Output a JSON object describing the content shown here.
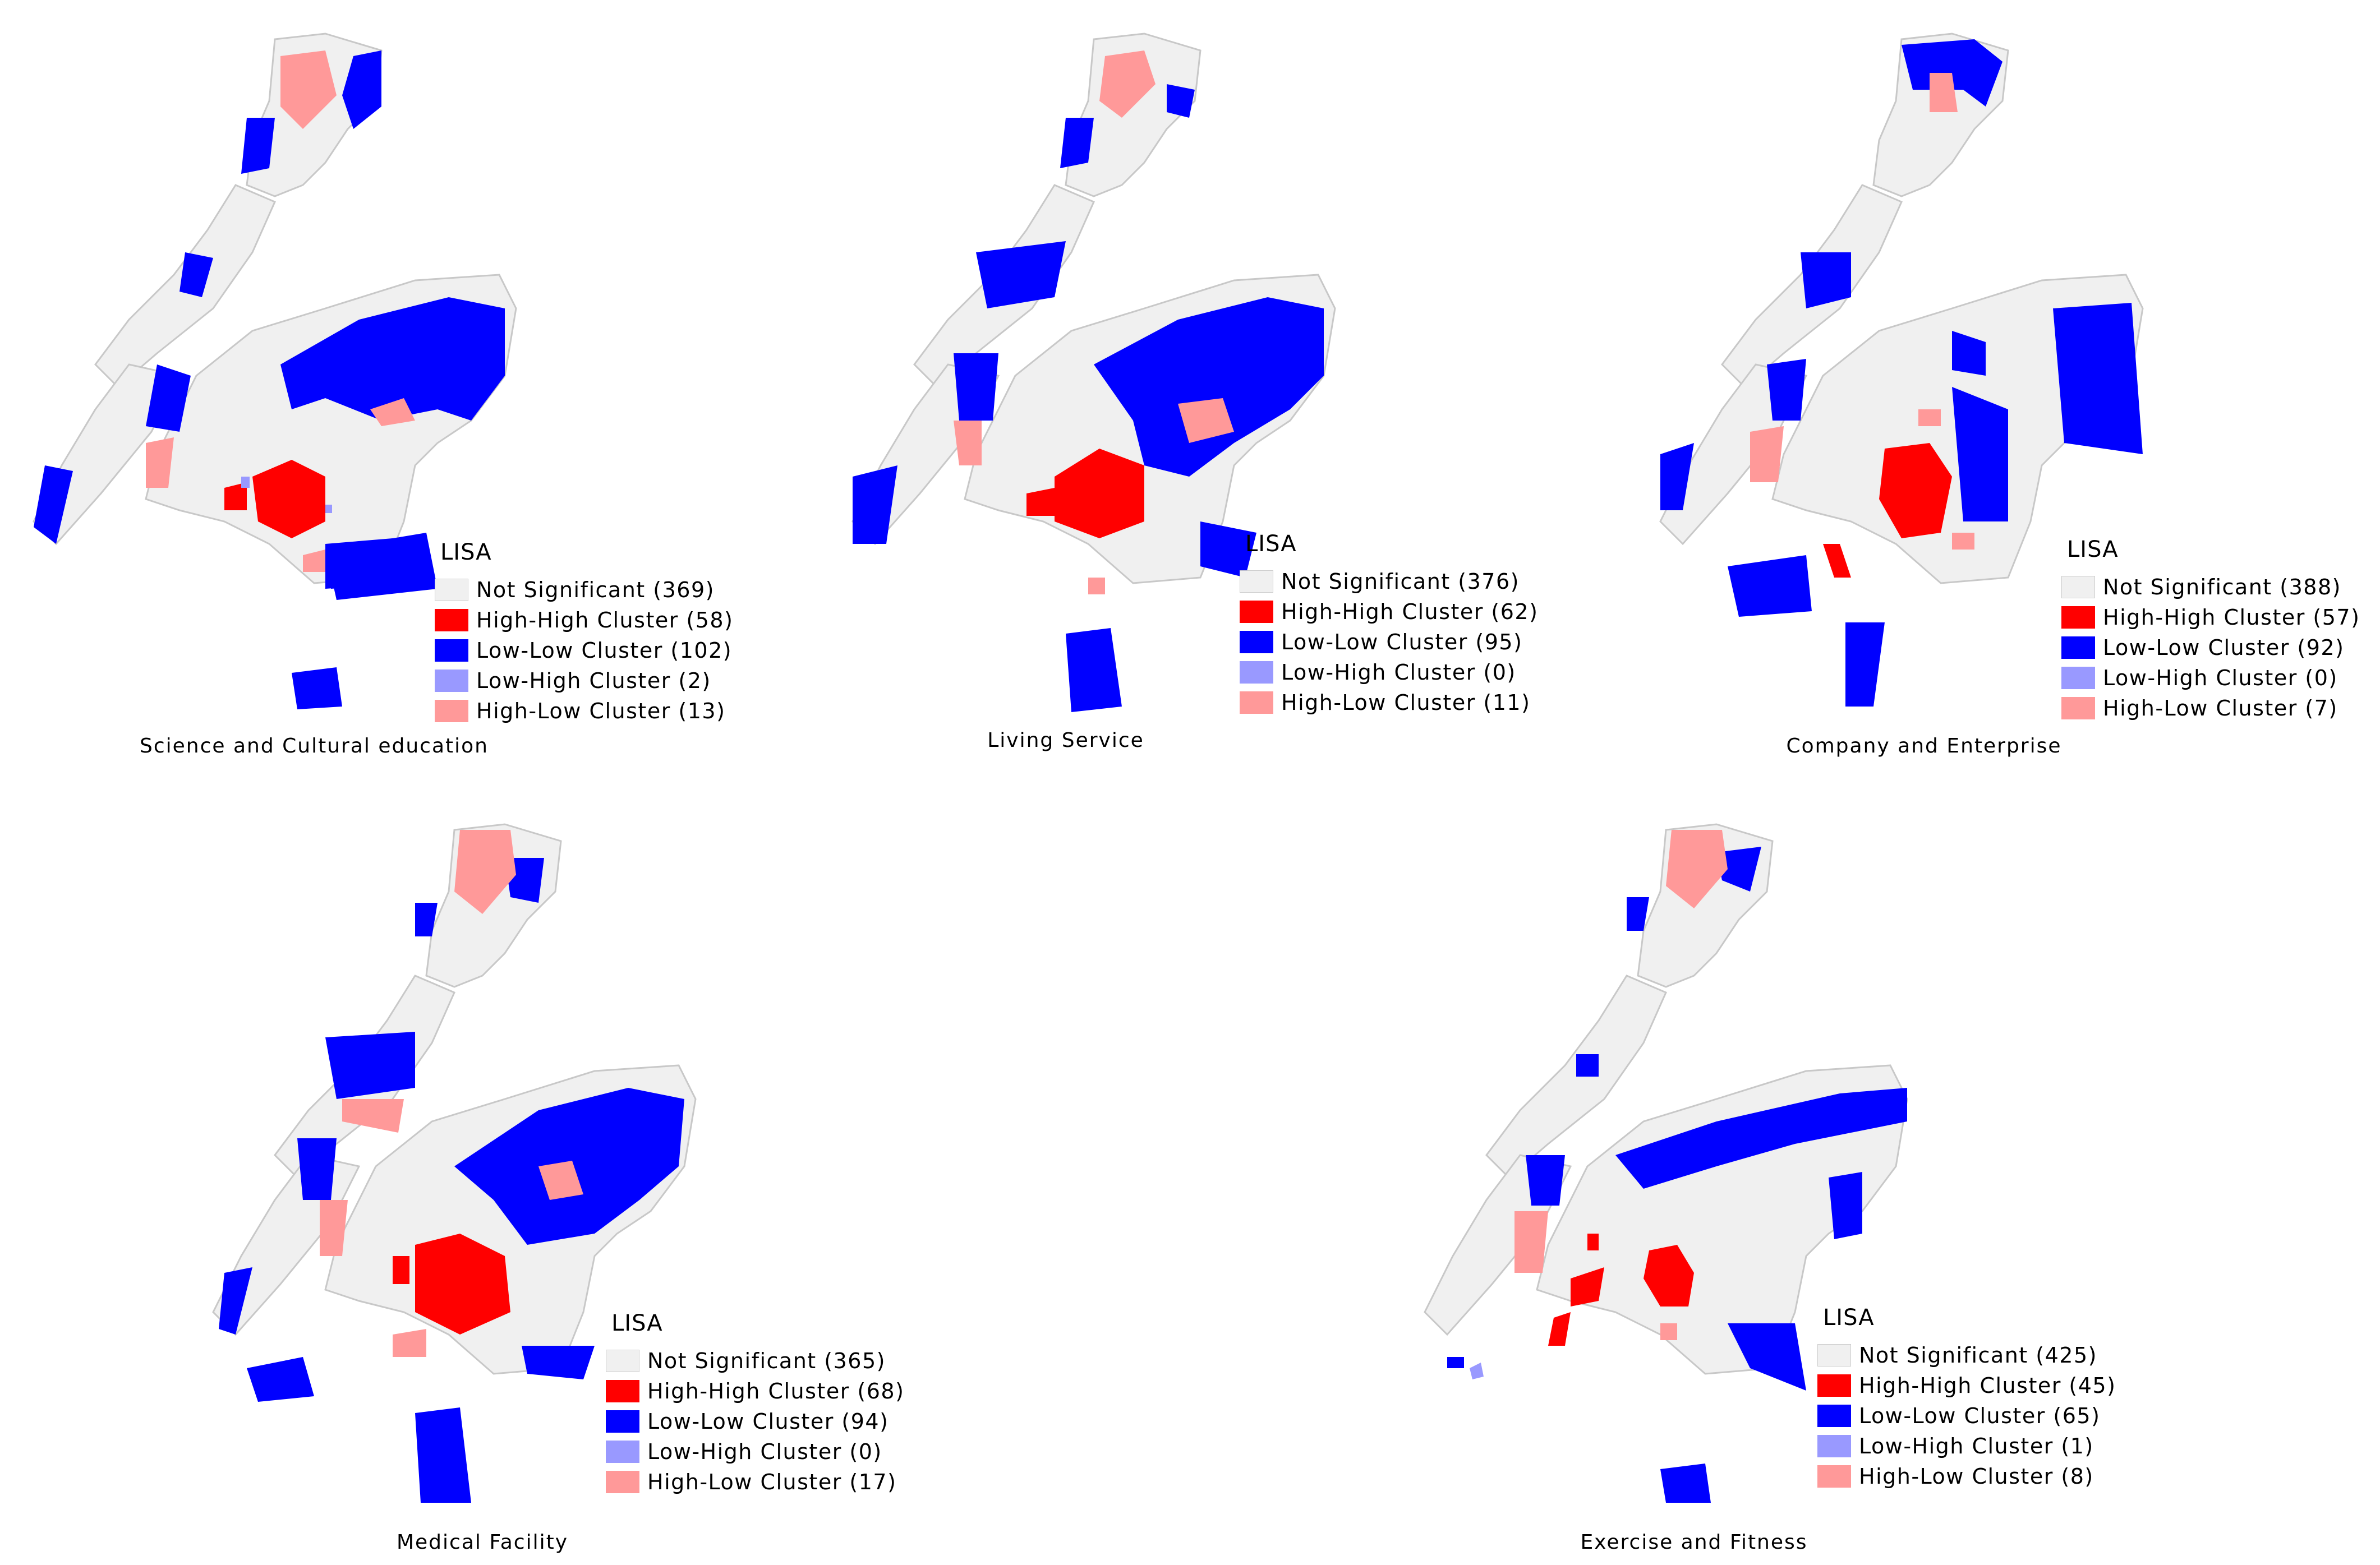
{
  "colors": {
    "not_significant": "#f0f0f0",
    "high_high": "#ff0000",
    "low_low": "#0000ff",
    "low_high": "#9999ff",
    "high_low": "#ff9999",
    "boundary": "#c8c8c8"
  },
  "panels": [
    {
      "caption": "Science and Cultural education",
      "legend_title": "LISA",
      "entries": [
        {
          "label": "Not Significant (369)",
          "color": "#f0f0f0"
        },
        {
          "label": "High-High Cluster (58)",
          "color": "#ff0000"
        },
        {
          "label": "Low-Low Cluster (102)",
          "color": "#0000ff"
        },
        {
          "label": "Low-High Cluster (2)",
          "color": "#9999ff"
        },
        {
          "label": "High-Low Cluster (13)",
          "color": "#ff9999"
        }
      ]
    },
    {
      "caption": "Living Service",
      "legend_title": "LISA",
      "entries": [
        {
          "label": "Not Significant (376)",
          "color": "#f0f0f0"
        },
        {
          "label": "High-High Cluster (62)",
          "color": "#ff0000"
        },
        {
          "label": "Low-Low Cluster (95)",
          "color": "#0000ff"
        },
        {
          "label": "Low-High Cluster (0)",
          "color": "#9999ff"
        },
        {
          "label": "High-Low Cluster (11)",
          "color": "#ff9999"
        }
      ]
    },
    {
      "caption": "Company and Enterprise",
      "legend_title": "LISA",
      "entries": [
        {
          "label": "Not Significant (388)",
          "color": "#f0f0f0"
        },
        {
          "label": "High-High Cluster (57)",
          "color": "#ff0000"
        },
        {
          "label": "Low-Low Cluster (92)",
          "color": "#0000ff"
        },
        {
          "label": "Low-High Cluster (0)",
          "color": "#9999ff"
        },
        {
          "label": "High-Low Cluster (7)",
          "color": "#ff9999"
        }
      ]
    },
    {
      "caption": "Medical Facility",
      "legend_title": "LISA",
      "entries": [
        {
          "label": "Not Significant (365)",
          "color": "#f0f0f0"
        },
        {
          "label": "High-High Cluster (68)",
          "color": "#ff0000"
        },
        {
          "label": "Low-Low Cluster (94)",
          "color": "#0000ff"
        },
        {
          "label": "Low-High Cluster (0)",
          "color": "#9999ff"
        },
        {
          "label": "High-Low Cluster (17)",
          "color": "#ff9999"
        }
      ]
    },
    {
      "caption": "Exercise and Fitness",
      "legend_title": "LISA",
      "entries": [
        {
          "label": "Not Significant (425)",
          "color": "#f0f0f0"
        },
        {
          "label": "High-High Cluster (45)",
          "color": "#ff0000"
        },
        {
          "label": "Low-Low Cluster (65)",
          "color": "#0000ff"
        },
        {
          "label": "Low-High Cluster (1)",
          "color": "#9999ff"
        },
        {
          "label": "High-Low Cluster (8)",
          "color": "#ff9999"
        }
      ]
    }
  ]
}
